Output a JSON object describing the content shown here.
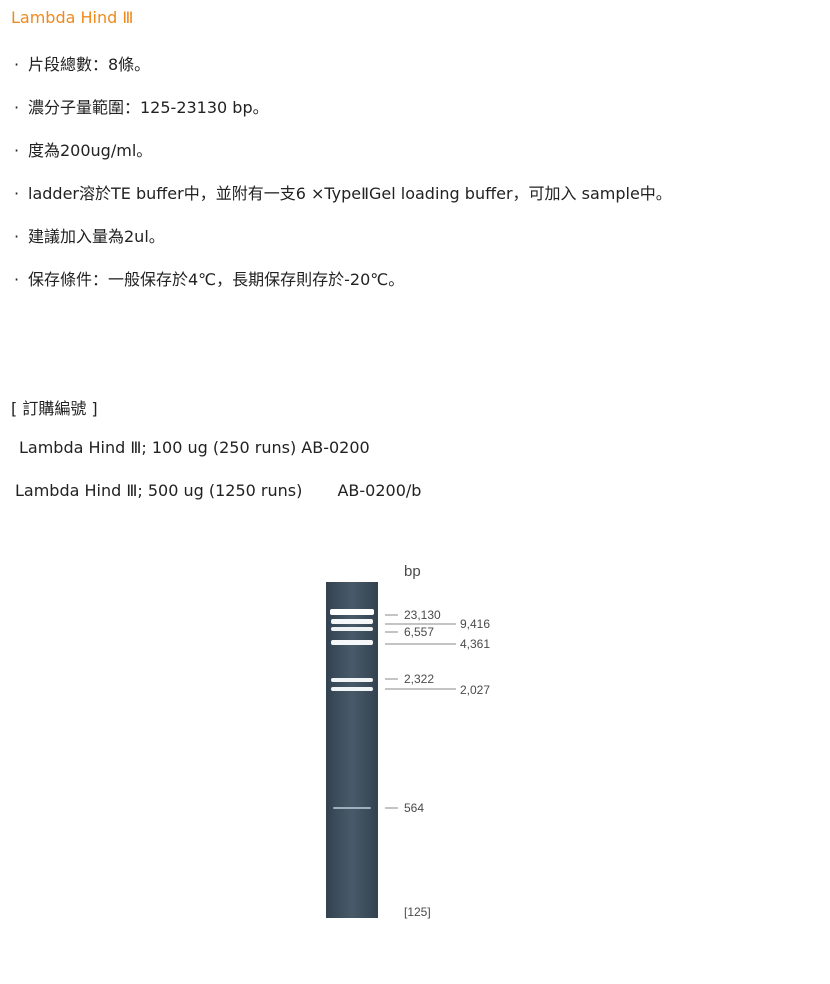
{
  "title": "Lambda Hind Ⅲ",
  "bullets": [
    {
      "marker": "·",
      "text": "片段總數：8條。"
    },
    {
      "marker": "·",
      "text": "濃分子量範圍：125-23130 bp。"
    },
    {
      "marker": "·",
      "text": "度為200ug/ml。"
    },
    {
      "marker": "·",
      "text": "ladder溶於TE buffer中，並附有一支6 ×TypeⅡGel loading buffer，可加入 sample中。"
    },
    {
      "marker": "·",
      "text": "建議加入量為2ul。"
    },
    {
      "marker": "·",
      "text": "保存條件：一般保存於4℃，長期保存則存於-20℃。"
    }
  ],
  "order": {
    "heading": "[ 訂購編號 ]",
    "items": [
      {
        "text": "Lambda Hind Ⅲ; 100 ug (250 runs) AB-0200",
        "code": ""
      },
      {
        "text": "Lambda Hind Ⅲ; 500 ug (1250 runs)",
        "code": "AB-0200/b"
      }
    ]
  },
  "gel": {
    "unit_label": "bp",
    "left_labels": [
      "23,130",
      "6,557",
      "2,322",
      "564",
      "[125]"
    ],
    "right_labels": [
      "9,416",
      "4,361",
      "2,027"
    ],
    "colors": {
      "lane": "#3e4f5e",
      "band": "#ffffff",
      "tick": "#8a8a8a"
    }
  }
}
